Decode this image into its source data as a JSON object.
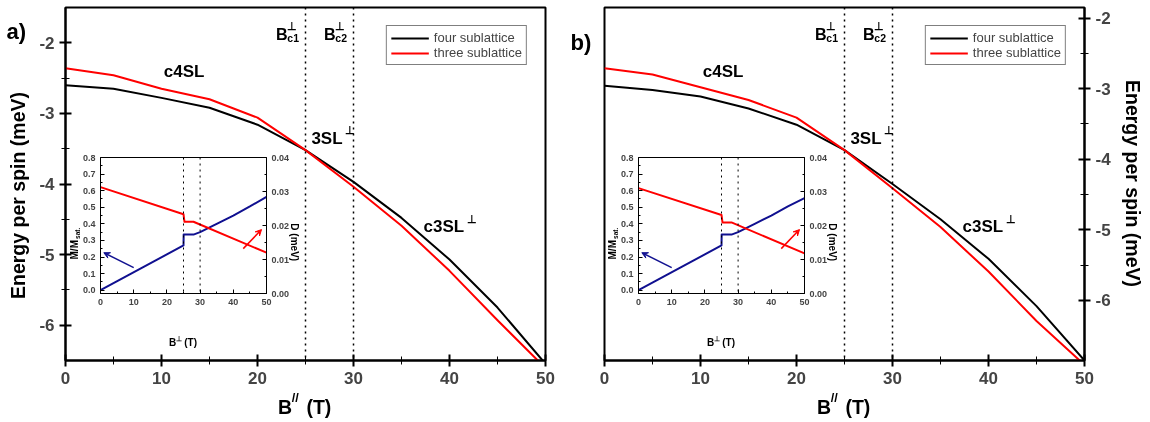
{
  "chart_data": [
    {
      "type": "line",
      "annotations": [
        "a)",
        "c4SL",
        "3SL$^{⊥}$",
        "c3SL$^{⊥}$"
      ],
      "xlabel": "B$^{//}$ (T)",
      "ylabel": "Energy per spin (meV)",
      "xlim": [
        0,
        50
      ],
      "ylim": [
        -6.5,
        -1.5
      ],
      "xticks": [
        0,
        10,
        20,
        30,
        40,
        50
      ],
      "yticks": [
        -6,
        -5,
        -4,
        -3,
        -2
      ],
      "series": [
        {
          "name": "four sublattice",
          "color": "#000000",
          "x": [
            0,
            5,
            10,
            15,
            20,
            25,
            30,
            35,
            40,
            45,
            49.7
          ],
          "values": [
            -2.6,
            -2.65,
            -2.78,
            -2.92,
            -3.16,
            -3.52,
            -3.97,
            -4.48,
            -5.07,
            -5.75,
            -6.5
          ]
        },
        {
          "name": "three sublattice",
          "color": "#ff0000",
          "x": [
            0,
            5,
            10,
            15,
            20,
            25,
            30,
            35,
            40,
            45,
            49.2
          ],
          "values": [
            -2.36,
            -2.46,
            -2.65,
            -2.8,
            -3.06,
            -3.52,
            -4.04,
            -4.59,
            -5.23,
            -5.93,
            -6.5
          ]
        }
      ],
      "ref_lines": [
        {
          "axis": "x",
          "value": 25,
          "label": "B$^{⊥}$$_{c1}$",
          "color": "#000000",
          "line_style": "dotted"
        },
        {
          "axis": "x",
          "value": 30,
          "label": "B$^{⊥}$$_{c2}$",
          "color": "#000000",
          "line_style": "dotted"
        }
      ],
      "legend": "top right",
      "grid": false,
      "line_style": "solid",
      "marker": "none"
    },
    {
      "type": "line",
      "xlabel": "B$^{⊥}$ (T)",
      "ylabel": "M/M$_{sat.}$",
      "y2label": "D (meV)",
      "xlim": [
        0,
        50
      ],
      "ylim": [
        -0.02,
        0.8
      ],
      "y2lim": [
        0,
        0.04
      ],
      "xticks": [
        0,
        10,
        20,
        30,
        40,
        50
      ],
      "yticks": [
        {
          "value": 0,
          "label": "0.0"
        },
        0.1,
        0.2,
        0.3,
        0.4,
        0.5,
        0.6,
        0.7,
        0.8
      ],
      "y2ticks": [
        {
          "value": 0,
          "label": "0.00"
        },
        0.01,
        0.02,
        0.03,
        0.04
      ],
      "series": [
        {
          "color": "#101090",
          "x": [
            0,
            25,
            25.05,
            28,
            30,
            35,
            40,
            45,
            50
          ],
          "values": [
            0,
            0.27,
            0.335,
            0.335,
            0.35,
            0.4,
            0.45,
            0.505,
            0.563
          ]
        },
        {
          "color": "#ff0000",
          "axis": "y2",
          "x": [
            0,
            25,
            25.3,
            28,
            50
          ],
          "values": [
            0.0313,
            0.0233,
            0.0211,
            0.0211,
            0.012
          ]
        }
      ],
      "ref_lines": [
        {
          "axis": "x",
          "value": 25,
          "color": "#000000",
          "line_style": "dotted"
        },
        {
          "axis": "x",
          "value": 30,
          "color": "#000000",
          "line_style": "dotted"
        }
      ],
      "grid": false,
      "line_style": "solid",
      "marker": "none"
    },
    {
      "type": "line",
      "annotations": [
        "b)",
        "c4SL",
        "3SL$^{⊥}$",
        "c3SL$^{⊥}$"
      ],
      "xlabel": "B$^{//}$ (T)",
      "y2label": "Energy per spin (meV)",
      "xlim": [
        0,
        50
      ],
      "y2lim": [
        -6.85,
        -1.85
      ],
      "xticks": [
        0,
        10,
        20,
        30,
        40,
        50
      ],
      "y2ticks": [
        -6,
        -5,
        -4,
        -3,
        -2
      ],
      "series": [
        {
          "name": "four sublattice",
          "color": "#000000",
          "axis": "y2",
          "x": [
            0,
            5,
            10,
            15,
            20,
            25,
            30,
            35,
            40,
            45,
            50
          ],
          "values": [
            -2.96,
            -3.02,
            -3.11,
            -3.28,
            -3.51,
            -3.87,
            -4.35,
            -4.85,
            -5.41,
            -6.08,
            -6.85
          ]
        },
        {
          "name": "three sublattice",
          "color": "#ff0000",
          "axis": "y2",
          "x": [
            0,
            5,
            10,
            15,
            20,
            25,
            30,
            35,
            40,
            45,
            49.5
          ],
          "values": [
            -2.71,
            -2.8,
            -2.98,
            -3.16,
            -3.41,
            -3.87,
            -4.41,
            -4.96,
            -5.59,
            -6.29,
            -6.85
          ]
        }
      ],
      "ref_lines": [
        {
          "axis": "x",
          "value": 25,
          "label": "B$^{⊥}$$_{c1}$",
          "color": "#000000",
          "line_style": "dotted"
        },
        {
          "axis": "x",
          "value": 30,
          "label": "B$^{⊥}$$_{c2}$",
          "color": "#000000",
          "line_style": "dotted"
        }
      ],
      "legend": "top right",
      "grid": false,
      "line_style": "solid",
      "marker": "none"
    },
    {
      "type": "line",
      "xlabel": "B$^{⊥}$ (T)",
      "ylabel": "M/M$_{sat.}$",
      "y2label": "D (meV)",
      "xlim": [
        0,
        50
      ],
      "ylim": [
        -0.02,
        0.8
      ],
      "y2lim": [
        0,
        0.04
      ],
      "xticks": [
        0,
        10,
        20,
        30,
        40,
        50
      ],
      "yticks": [
        {
          "value": 0,
          "label": "0.0"
        },
        0.1,
        0.2,
        0.3,
        0.4,
        0.5,
        0.6,
        0.7,
        0.8
      ],
      "y2ticks": [
        {
          "value": 0,
          "label": "0.00"
        },
        0.01,
        0.02,
        0.03,
        0.04
      ],
      "series": [
        {
          "color": "#101090",
          "x": [
            0,
            25,
            25.05,
            28,
            30,
            35,
            40,
            45,
            50
          ],
          "values": [
            0,
            0.27,
            0.335,
            0.335,
            0.35,
            0.4,
            0.45,
            0.505,
            0.555
          ]
        },
        {
          "color": "#ff0000",
          "axis": "y2",
          "x": [
            0,
            25,
            25.3,
            28,
            50
          ],
          "values": [
            0.031,
            0.0231,
            0.0209,
            0.0209,
            0.0118
          ]
        }
      ],
      "ref_lines": [
        {
          "axis": "x",
          "value": 25,
          "color": "#000000",
          "line_style": "dotted"
        },
        {
          "axis": "x",
          "value": 30,
          "color": "#000000",
          "line_style": "dotted"
        }
      ],
      "grid": false,
      "line_style": "solid",
      "marker": "none"
    }
  ]
}
